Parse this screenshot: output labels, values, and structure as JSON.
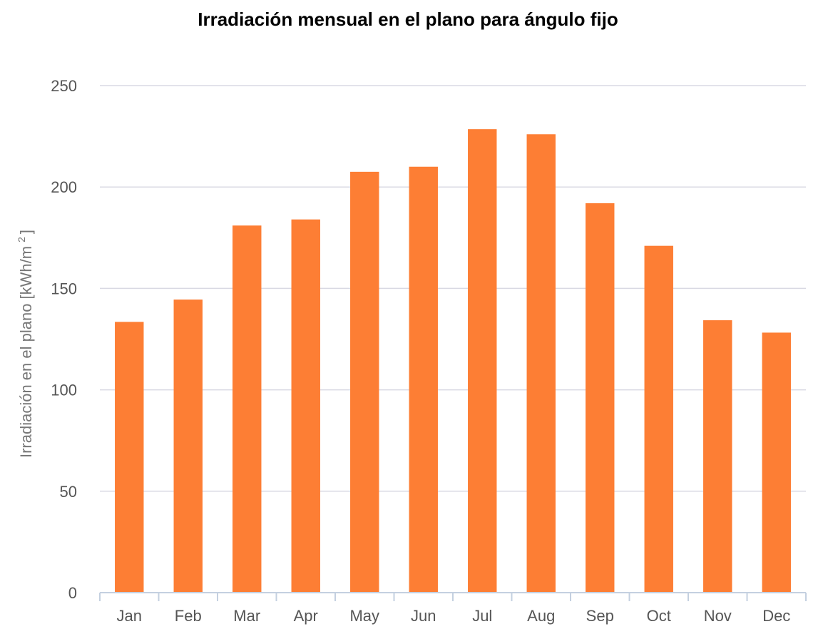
{
  "chart_data": {
    "type": "bar",
    "title": "Irradiación mensual en el plano para ángulo fijo",
    "ylabel": {
      "prefix": "Irradiación en el plano [kWh/m",
      "superscript": "2",
      "suffix": "]"
    },
    "xlabel": "",
    "ylim": [
      0,
      250
    ],
    "yticks": [
      "0",
      "50",
      "100",
      "150",
      "200",
      "250"
    ],
    "grid": true,
    "legend": "none",
    "categories": [
      "Jan",
      "Feb",
      "Mar",
      "Apr",
      "May",
      "Jun",
      "Jul",
      "Aug",
      "Sep",
      "Oct",
      "Nov",
      "Dec"
    ],
    "series": [
      {
        "values": [
          133.5,
          144.5,
          181,
          184,
          207.5,
          210,
          228.5,
          226,
          192,
          171,
          134.3,
          128.2
        ],
        "color": "#fd7e34"
      }
    ],
    "colors": {
      "bar": "#fd7e34",
      "grid": "#d9d9e3",
      "axis": "#c4d0e0"
    }
  }
}
